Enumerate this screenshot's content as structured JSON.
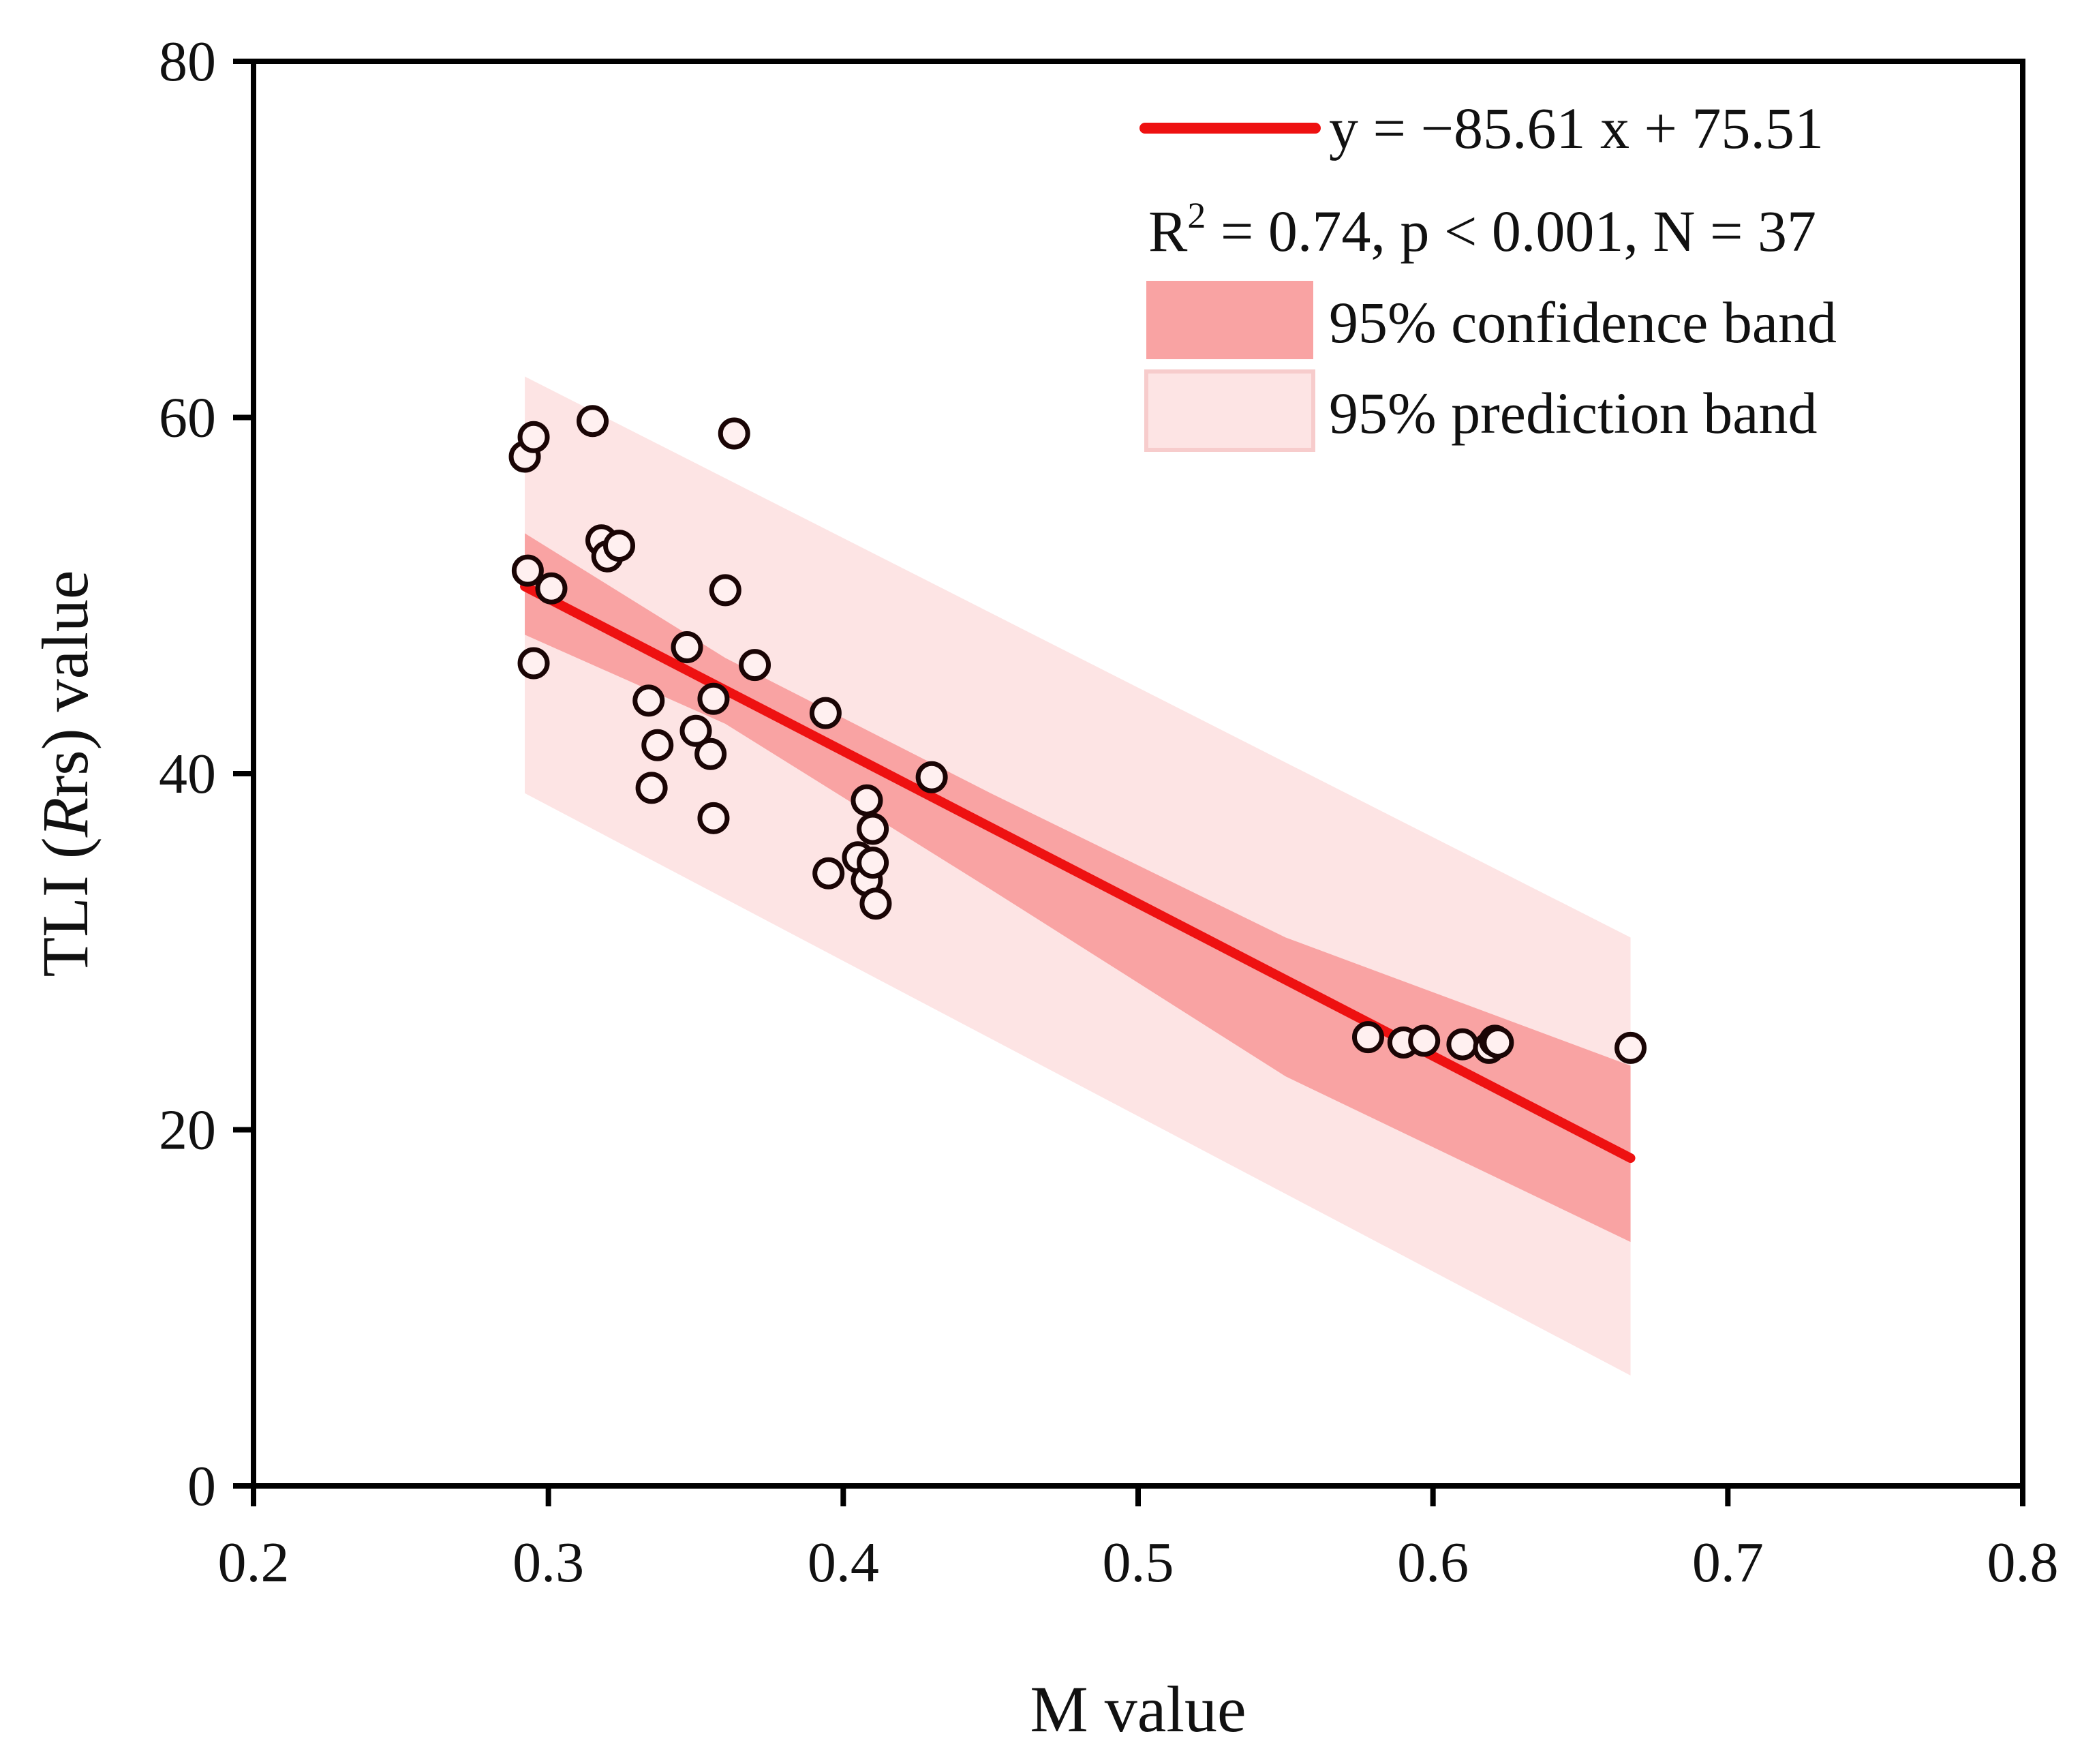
{
  "colors": {
    "line": "#ee1111",
    "confidence_band": "#f9a3a3",
    "prediction_band": "#fde4e4",
    "point_fill": "#fff0f0",
    "point_stroke": "#1a0505",
    "axis": "#000000"
  },
  "chart_data": {
    "type": "scatter",
    "xlabel": "M value",
    "ylabel_parts": {
      "prefix": "TLI (",
      "italic": "R",
      "rest": "rs) value"
    },
    "xlim": [
      0.2,
      0.8
    ],
    "ylim": [
      0,
      80
    ],
    "x_ticks": [
      0.2,
      0.3,
      0.4,
      0.5,
      0.6,
      0.7,
      0.8
    ],
    "x_tick_labels": [
      "0.2",
      "0.3",
      "0.4",
      "0.5",
      "0.6",
      "0.7",
      "0.8"
    ],
    "y_ticks": [
      0,
      20,
      40,
      60,
      80
    ],
    "y_tick_labels": [
      "0",
      "20",
      "40",
      "60",
      "80"
    ],
    "grid": false,
    "legend_position": "top-right",
    "legend": {
      "equation": "y = −85.61 x + 75.51",
      "stats": {
        "r": "R",
        "sup": "2",
        "rest": " = 0.74, p < 0.001, N = 37"
      },
      "confidence_label": "95% confidence band",
      "prediction_label": "95% prediction band"
    },
    "fit": {
      "slope": -85.61,
      "intercept": 75.51,
      "x_range": [
        0.292,
        0.667
      ]
    },
    "confidence_band": {
      "x": [
        0.292,
        0.36,
        0.45,
        0.55,
        0.667
      ],
      "upper": [
        53.5,
        46.5,
        38.9,
        30.8,
        23.6
      ],
      "lower": [
        47.8,
        42.8,
        33.5,
        23.0,
        13.7
      ]
    },
    "prediction_band": {
      "x": [
        0.292,
        0.667
      ],
      "upper": [
        62.3,
        30.8
      ],
      "lower": [
        38.9,
        6.2
      ]
    },
    "points": [
      {
        "x": 0.292,
        "y": 57.8
      },
      {
        "x": 0.295,
        "y": 58.9
      },
      {
        "x": 0.293,
        "y": 51.4
      },
      {
        "x": 0.301,
        "y": 50.4
      },
      {
        "x": 0.295,
        "y": 46.2
      },
      {
        "x": 0.315,
        "y": 59.8
      },
      {
        "x": 0.318,
        "y": 53.1
      },
      {
        "x": 0.32,
        "y": 52.2
      },
      {
        "x": 0.324,
        "y": 52.8
      },
      {
        "x": 0.334,
        "y": 44.1
      },
      {
        "x": 0.337,
        "y": 41.6
      },
      {
        "x": 0.335,
        "y": 39.2
      },
      {
        "x": 0.347,
        "y": 47.1
      },
      {
        "x": 0.35,
        "y": 42.4
      },
      {
        "x": 0.355,
        "y": 41.1
      },
      {
        "x": 0.356,
        "y": 44.2
      },
      {
        "x": 0.356,
        "y": 37.5
      },
      {
        "x": 0.36,
        "y": 50.3
      },
      {
        "x": 0.363,
        "y": 59.1
      },
      {
        "x": 0.37,
        "y": 46.1
      },
      {
        "x": 0.394,
        "y": 43.4
      },
      {
        "x": 0.395,
        "y": 34.4
      },
      {
        "x": 0.405,
        "y": 35.3
      },
      {
        "x": 0.408,
        "y": 38.5
      },
      {
        "x": 0.408,
        "y": 34.0
      },
      {
        "x": 0.41,
        "y": 36.9
      },
      {
        "x": 0.41,
        "y": 35.0
      },
      {
        "x": 0.411,
        "y": 32.7
      },
      {
        "x": 0.43,
        "y": 39.8
      },
      {
        "x": 0.578,
        "y": 25.2
      },
      {
        "x": 0.59,
        "y": 24.9
      },
      {
        "x": 0.597,
        "y": 25.0
      },
      {
        "x": 0.61,
        "y": 24.8
      },
      {
        "x": 0.619,
        "y": 24.6
      },
      {
        "x": 0.621,
        "y": 25.0
      },
      {
        "x": 0.667,
        "y": 24.6
      },
      {
        "x": 0.622,
        "y": 24.9
      }
    ]
  }
}
